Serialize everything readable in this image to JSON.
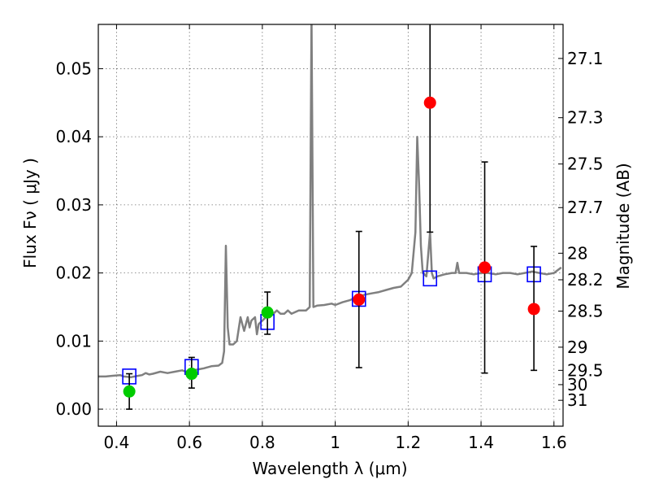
{
  "chart_data": {
    "type": "scatter",
    "xlabel": "Wavelength  λ (μm)",
    "ylabel": "Flux  Fν ( μJy )",
    "ylabel_right": "Magnitude (AB)",
    "xlim": [
      0.35,
      1.625
    ],
    "ylim": [
      -0.0025,
      0.0565
    ],
    "x_ticks": [
      0.4,
      0.6,
      0.8,
      1.0,
      1.2,
      1.4,
      1.6
    ],
    "x_tick_labels": [
      "0.4",
      "0.6",
      "0.8",
      "1",
      "1.2",
      "1.4",
      "1.6"
    ],
    "y_ticks": [
      0.0,
      0.01,
      0.02,
      0.03,
      0.04,
      0.05
    ],
    "y_tick_labels": [
      "0.00",
      "0.01",
      "0.02",
      "0.03",
      "0.04",
      "0.05"
    ],
    "right_ticks": [
      {
        "label": "27.1",
        "flux": 0.0515
      },
      {
        "label": "27.3",
        "flux": 0.0428
      },
      {
        "label": "27.5",
        "flux": 0.036
      },
      {
        "label": "27.7",
        "flux": 0.0296
      },
      {
        "label": "28",
        "flux": 0.0229
      },
      {
        "label": "28.2",
        "flux": 0.019
      },
      {
        "label": "28.5",
        "flux": 0.0144
      },
      {
        "label": "29",
        "flux": 0.0091
      },
      {
        "label": "29.5",
        "flux": 0.0057
      },
      {
        "label": "30",
        "flux": 0.0036
      },
      {
        "label": "31",
        "flux": 0.0013
      }
    ],
    "grid": true,
    "colors": {
      "model": "#808080",
      "model_points": "#0000ff",
      "detected": "#00cc00",
      "upper": "#ff0000",
      "errorbar": "#000000"
    },
    "series": [
      {
        "kind": "model_spectrum",
        "x": [
          0.35,
          0.37,
          0.39,
          0.41,
          0.42,
          0.44,
          0.46,
          0.47,
          0.48,
          0.49,
          0.5,
          0.52,
          0.54,
          0.56,
          0.58,
          0.59,
          0.6,
          0.62,
          0.64,
          0.66,
          0.68,
          0.69,
          0.695,
          0.7,
          0.705,
          0.71,
          0.72,
          0.73,
          0.74,
          0.745,
          0.75,
          0.76,
          0.765,
          0.77,
          0.78,
          0.785,
          0.79,
          0.8,
          0.81,
          0.82,
          0.83,
          0.84,
          0.85,
          0.86,
          0.87,
          0.88,
          0.9,
          0.92,
          0.93,
          0.935,
          0.94,
          0.95,
          0.97,
          0.99,
          1.0,
          1.02,
          1.04,
          1.06,
          1.08,
          1.1,
          1.12,
          1.14,
          1.16,
          1.18,
          1.2,
          1.21,
          1.22,
          1.225,
          1.23,
          1.235,
          1.24,
          1.25,
          1.26,
          1.265,
          1.27,
          1.28,
          1.3,
          1.32,
          1.33,
          1.335,
          1.34,
          1.36,
          1.38,
          1.4,
          1.42,
          1.44,
          1.46,
          1.48,
          1.5,
          1.52,
          1.54,
          1.56,
          1.58,
          1.6,
          1.62
        ],
        "y": [
          0.0048,
          0.0048,
          0.0049,
          0.005,
          0.0048,
          0.0047,
          0.0049,
          0.005,
          0.0053,
          0.0051,
          0.0052,
          0.0055,
          0.0053,
          0.0055,
          0.0057,
          0.0055,
          0.0056,
          0.0058,
          0.006,
          0.0063,
          0.0064,
          0.0068,
          0.0085,
          0.024,
          0.012,
          0.0095,
          0.0095,
          0.01,
          0.0135,
          0.0125,
          0.0115,
          0.0135,
          0.012,
          0.013,
          0.0135,
          0.011,
          0.0125,
          0.013,
          0.0135,
          0.0135,
          0.014,
          0.0145,
          0.014,
          0.014,
          0.0145,
          0.014,
          0.0145,
          0.0145,
          0.015,
          0.058,
          0.015,
          0.0152,
          0.0153,
          0.0155,
          0.0153,
          0.0157,
          0.016,
          0.0165,
          0.0168,
          0.017,
          0.0172,
          0.0175,
          0.0178,
          0.018,
          0.019,
          0.02,
          0.026,
          0.04,
          0.033,
          0.024,
          0.02,
          0.0195,
          0.026,
          0.02,
          0.0192,
          0.0195,
          0.0198,
          0.02,
          0.02,
          0.0215,
          0.02,
          0.02,
          0.0198,
          0.02,
          0.02,
          0.0198,
          0.02,
          0.02,
          0.0198,
          0.02,
          0.0202,
          0.02,
          0.0198,
          0.02,
          0.0208
        ]
      },
      {
        "kind": "model_photometry",
        "x": [
          0.435,
          0.606,
          0.814,
          1.065,
          1.26,
          1.41,
          1.545
        ],
        "y": [
          0.0048,
          0.0062,
          0.0128,
          0.0162,
          0.0192,
          0.0198,
          0.0198
        ]
      },
      {
        "kind": "detections",
        "x": [
          0.435,
          0.606,
          0.814
        ],
        "y": [
          0.0026,
          0.0052,
          0.0142
        ],
        "err_low": [
          0.0026,
          0.0021,
          0.0032
        ],
        "err_high": [
          0.0026,
          0.0024,
          0.003
        ]
      },
      {
        "kind": "non_detections",
        "x": [
          1.065,
          1.26,
          1.41,
          1.545
        ],
        "y": [
          0.0161,
          0.045,
          0.0208,
          0.0147
        ],
        "err_low": [
          0.01,
          0.019,
          0.0155,
          0.009
        ],
        "err_high": [
          0.01,
          0.019,
          0.0155,
          0.0092
        ]
      }
    ]
  }
}
